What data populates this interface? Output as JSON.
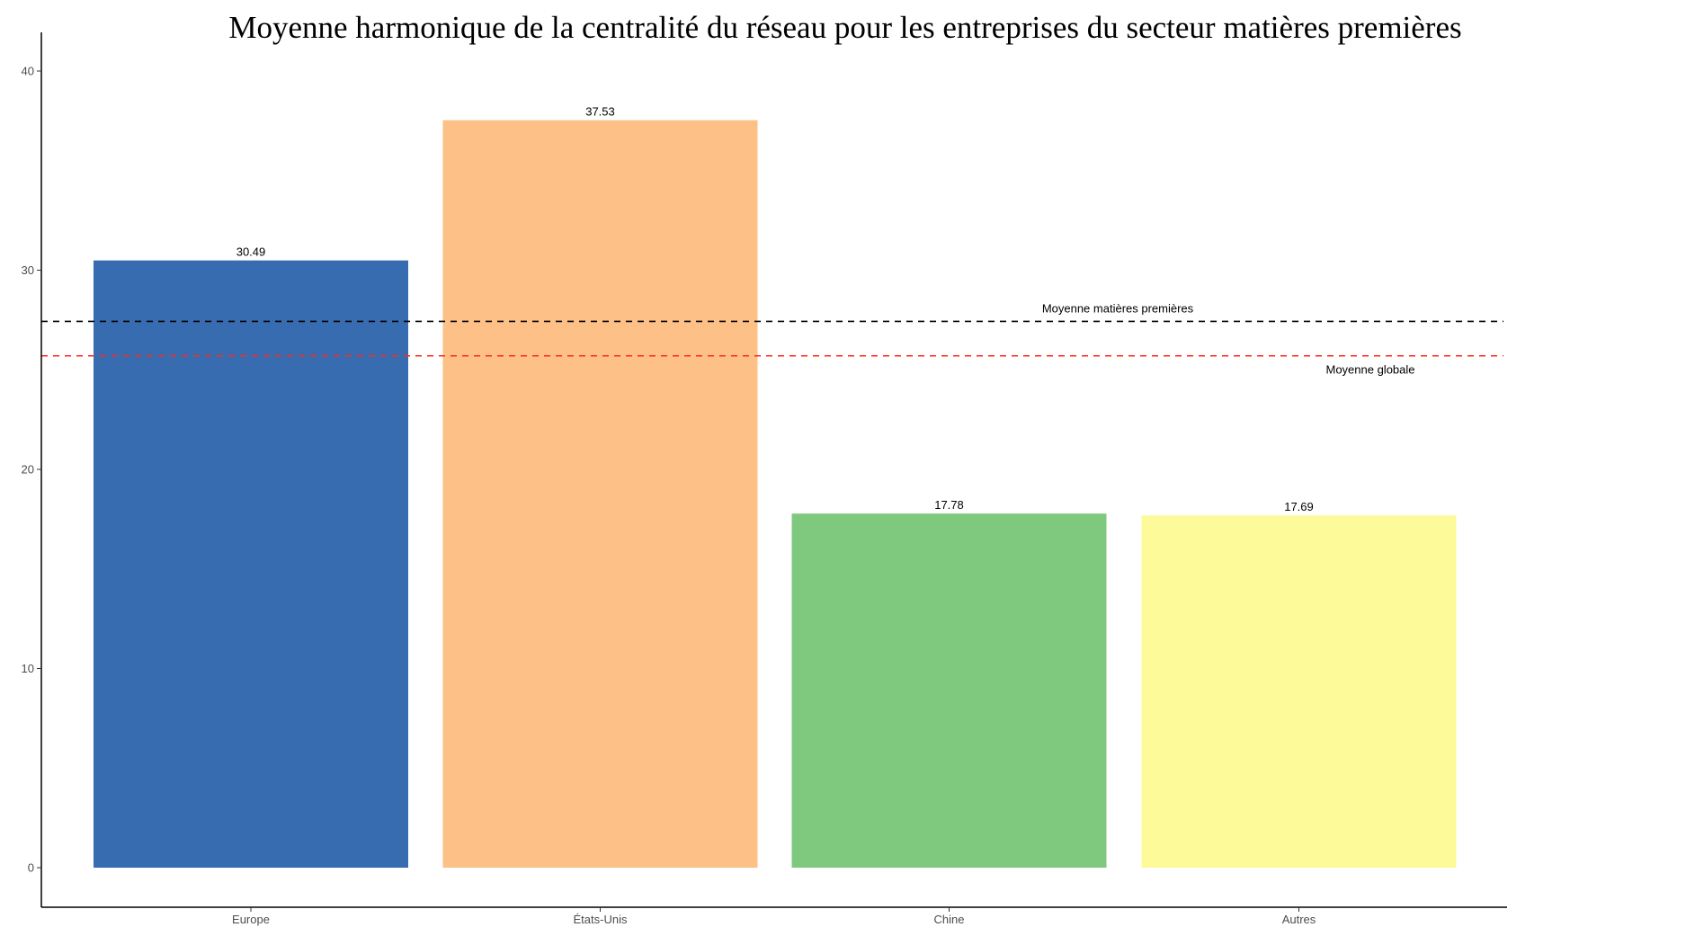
{
  "chart_data": {
    "type": "bar",
    "title": "Moyenne harmonique de la centralité du réseau pour les entreprises du secteur matières premières",
    "xlabel": "",
    "ylabel": "",
    "ylim": [
      -2,
      42
    ],
    "yticks": [
      0,
      10,
      20,
      30,
      40
    ],
    "ytick_labels": [
      "0",
      "10",
      "20",
      "30",
      "40"
    ],
    "grid": false,
    "categories": [
      "Europe",
      "États-Unis",
      "Chine",
      "Autres"
    ],
    "values": [
      30.49,
      37.53,
      17.78,
      17.69
    ],
    "value_labels": [
      "30.49",
      "37.53",
      "17.78",
      "17.69"
    ],
    "colors": [
      "#386cb0",
      "#fdc086",
      "#7fc97f",
      "#fdfb99"
    ],
    "reference_lines": [
      {
        "label": "Moyenne matières premières",
        "value": 27.43,
        "color": "#000000"
      },
      {
        "label": "Moyenne globale",
        "value": 25.7,
        "color": "#ff2a1a"
      }
    ]
  }
}
